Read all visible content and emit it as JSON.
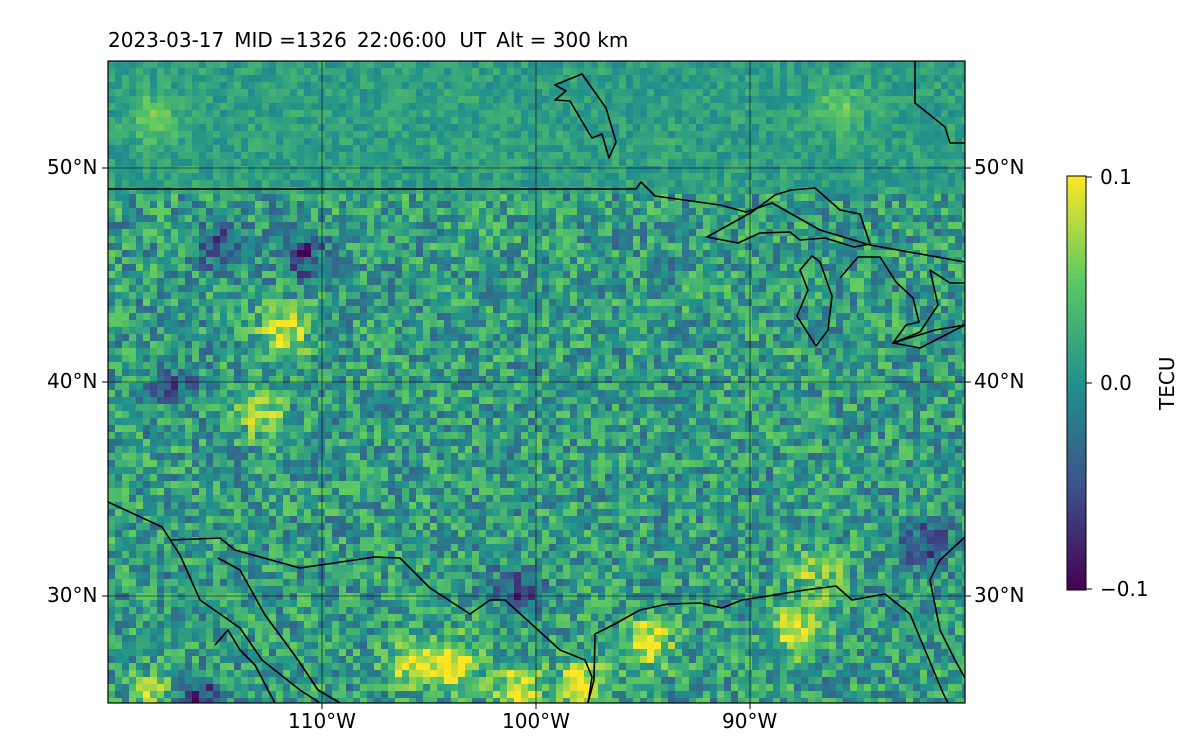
{
  "title": {
    "date": "2023-03-17",
    "mid": "MID =1326",
    "time": "22:06:00  UT",
    "alt": "Alt = 300 km"
  },
  "map": {
    "lon_range": [
      -120,
      -80
    ],
    "lat_range": [
      25,
      55
    ],
    "lat_ticks": [
      "50°N",
      "40°N",
      "30°N"
    ],
    "lon_ticks": [
      "110°W",
      "100°W",
      "90°W"
    ],
    "gridlines": true,
    "colormap": "viridis",
    "features": [
      "coastlines",
      "country borders",
      "Great Lakes"
    ]
  },
  "colorbar": {
    "label": "TECU",
    "ticks": [
      "0.1",
      "0.0",
      "−0.1"
    ],
    "vmin": -0.1,
    "vmax": 0.1,
    "colors": [
      "#440154",
      "#3b528b",
      "#21918c",
      "#5ec962",
      "#fde725"
    ]
  },
  "chart_data": {
    "type": "heatmap",
    "title": "2023-03-17  MID =1326    22:06:00  UT  Alt = 300 km",
    "colorbar_label": "TECU",
    "value_range": [
      -0.1,
      0.1
    ],
    "hotspots": [
      {
        "lon": -95,
        "lat": 28,
        "value": 0.1
      },
      {
        "lon": -88,
        "lat": 28.5,
        "value": 0.1
      },
      {
        "lon": -104,
        "lat": 27,
        "value": 0.1
      },
      {
        "lon": -106,
        "lat": 27,
        "value": 0.08
      },
      {
        "lon": -112,
        "lat": 42.5,
        "value": 0.09
      },
      {
        "lon": -113,
        "lat": 38.8,
        "value": 0.07
      },
      {
        "lon": -98,
        "lat": 26,
        "value": 0.1
      },
      {
        "lon": -101,
        "lat": 25.7,
        "value": 0.1
      },
      {
        "lon": -118,
        "lat": 25.5,
        "value": 0.06
      },
      {
        "lon": -118,
        "lat": 52.5,
        "value": 0.05
      },
      {
        "lon": -87,
        "lat": 31,
        "value": 0.06
      },
      {
        "lon": -86,
        "lat": 53,
        "value": 0.04
      }
    ],
    "coldspots": [
      {
        "lon": -116,
        "lat": 25.3,
        "value": -0.1
      },
      {
        "lon": -111,
        "lat": 46,
        "value": -0.08
      },
      {
        "lon": -101,
        "lat": 30.5,
        "value": -0.07
      },
      {
        "lon": -82,
        "lat": 32.5,
        "value": -0.08
      },
      {
        "lon": -115,
        "lat": 46.5,
        "value": -0.07
      },
      {
        "lon": -117,
        "lat": 40,
        "value": -0.06
      }
    ]
  }
}
